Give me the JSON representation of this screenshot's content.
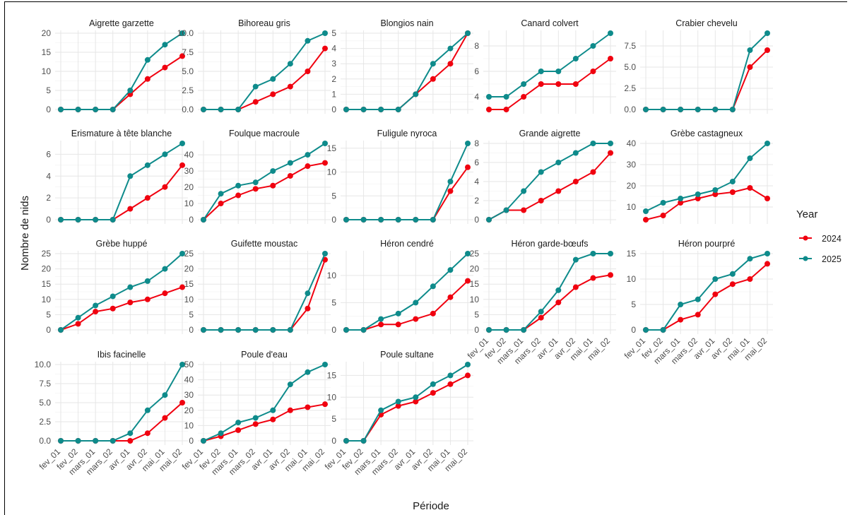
{
  "chart_data": {
    "type": "line",
    "facet": "small-multiples",
    "xlabel": "Période",
    "ylabel": "Nombre de nids",
    "x": [
      "fev_01",
      "fev_02",
      "mars_01",
      "mars_02",
      "avr_01",
      "avr_02",
      "mai_01",
      "mai_02"
    ],
    "legend": {
      "title": "Year",
      "placement": "right"
    },
    "series_colors": {
      "2024": "#f0000f",
      "2025": "#0e8b8b"
    },
    "grid": true,
    "panels": [
      {
        "title": "Aigrette garzette",
        "yticks": [
          "0",
          "5",
          "10",
          "15",
          "20"
        ],
        "tickvals": [
          0,
          5,
          10,
          15,
          20
        ],
        "ylim": [
          0,
          20
        ],
        "series": [
          {
            "name": "2024",
            "values": [
              0,
              0,
              0,
              0,
              4,
              8,
              11,
              14
            ]
          },
          {
            "name": "2025",
            "values": [
              0,
              0,
              0,
              0,
              5,
              13,
              17,
              20
            ]
          }
        ]
      },
      {
        "title": "Bihoreau gris",
        "yticks": [
          "0.0",
          "2.5",
          "5.0",
          "7.5",
          "10.0"
        ],
        "tickvals": [
          0,
          2.5,
          5,
          7.5,
          10
        ],
        "ylim": [
          0,
          10
        ],
        "series": [
          {
            "name": "2024",
            "values": [
              0,
              0,
              0,
              1,
              2,
              3,
              5,
              8
            ]
          },
          {
            "name": "2025",
            "values": [
              0,
              0,
              0,
              3,
              4,
              6,
              9,
              10
            ]
          }
        ]
      },
      {
        "title": "Blongios nain",
        "yticks": [
          "0",
          "1",
          "2",
          "3",
          "4",
          "5"
        ],
        "tickvals": [
          0,
          1,
          2,
          3,
          4,
          5
        ],
        "ylim": [
          0,
          5
        ],
        "series": [
          {
            "name": "2024",
            "values": [
              0,
              0,
              0,
              0,
              1,
              2,
              3,
              5
            ]
          },
          {
            "name": "2025",
            "values": [
              0,
              0,
              0,
              0,
              1,
              3,
              4,
              5
            ]
          }
        ]
      },
      {
        "title": "Canard colvert",
        "yticks": [
          "4",
          "6",
          "8"
        ],
        "tickvals": [
          4,
          6,
          8
        ],
        "ylim": [
          3,
          9
        ],
        "series": [
          {
            "name": "2024",
            "values": [
              3,
              3,
              4,
              5,
              5,
              5,
              6,
              7
            ]
          },
          {
            "name": "2025",
            "values": [
              4,
              4,
              5,
              6,
              6,
              7,
              8,
              9
            ]
          }
        ]
      },
      {
        "title": "Crabier chevelu",
        "yticks": [
          "0.0",
          "2.5",
          "5.0",
          "7.5"
        ],
        "tickvals": [
          0,
          2.5,
          5,
          7.5
        ],
        "ylim": [
          0,
          9
        ],
        "series": [
          {
            "name": "2024",
            "values": [
              0,
              0,
              0,
              0,
              0,
              0,
              5,
              7
            ]
          },
          {
            "name": "2025",
            "values": [
              0,
              0,
              0,
              0,
              0,
              0,
              7,
              9
            ]
          }
        ]
      },
      {
        "title": "Erismature à tête blanche",
        "yticks": [
          "0",
          "2",
          "4",
          "6"
        ],
        "tickvals": [
          0,
          2,
          4,
          6
        ],
        "ylim": [
          0,
          7
        ],
        "series": [
          {
            "name": "2024",
            "values": [
              0,
              0,
              0,
              0,
              1,
              2,
              3,
              5
            ]
          },
          {
            "name": "2025",
            "values": [
              0,
              0,
              0,
              0,
              4,
              5,
              6,
              7
            ]
          }
        ]
      },
      {
        "title": "Foulque macroule",
        "yticks": [
          "0",
          "10",
          "20",
          "30",
          "40"
        ],
        "tickvals": [
          0,
          10,
          20,
          30,
          40
        ],
        "ylim": [
          0,
          47
        ],
        "series": [
          {
            "name": "2024",
            "values": [
              0,
              10,
              15,
              19,
              21,
              27,
              33,
              35
            ]
          },
          {
            "name": "2025",
            "values": [
              0,
              16,
              21,
              23,
              30,
              35,
              40,
              47
            ]
          }
        ]
      },
      {
        "title": "Fuligule nyroca",
        "yticks": [
          "0",
          "5",
          "10",
          "15"
        ],
        "tickvals": [
          0,
          5,
          10,
          15
        ],
        "ylim": [
          0,
          16
        ],
        "series": [
          {
            "name": "2024",
            "values": [
              0,
              0,
              0,
              0,
              0,
              0,
              6,
              11
            ]
          },
          {
            "name": "2025",
            "values": [
              0,
              0,
              0,
              0,
              0,
              0,
              8,
              16
            ]
          }
        ]
      },
      {
        "title": "Grande aigrette",
        "yticks": [
          "0",
          "2",
          "4",
          "6",
          "8"
        ],
        "tickvals": [
          0,
          2,
          4,
          6,
          8
        ],
        "ylim": [
          0,
          8
        ],
        "series": [
          {
            "name": "2024",
            "values": [
              0,
              1,
              1,
              2,
              3,
              4,
              5,
              7
            ]
          },
          {
            "name": "2025",
            "values": [
              0,
              1,
              3,
              5,
              6,
              7,
              8,
              8
            ]
          }
        ]
      },
      {
        "title": "Grèbe castagneux",
        "yticks": [
          "10",
          "20",
          "30",
          "40"
        ],
        "tickvals": [
          10,
          20,
          30,
          40
        ],
        "ylim": [
          4,
          40
        ],
        "series": [
          {
            "name": "2024",
            "values": [
              4,
              6,
              12,
              14,
              16,
              17,
              19,
              14
            ]
          },
          {
            "name": "2025",
            "values": [
              8,
              12,
              14,
              16,
              18,
              22,
              33,
              40
            ]
          }
        ]
      },
      {
        "title": "Grèbe huppé",
        "yticks": [
          "0",
          "5",
          "10",
          "15",
          "20",
          "25"
        ],
        "tickvals": [
          0,
          5,
          10,
          15,
          20,
          25
        ],
        "ylim": [
          0,
          25
        ],
        "series": [
          {
            "name": "2024",
            "values": [
              0,
              2,
              6,
              7,
              9,
              10,
              12,
              14
            ]
          },
          {
            "name": "2025",
            "values": [
              0,
              4,
              8,
              11,
              14,
              16,
              20,
              25
            ]
          }
        ]
      },
      {
        "title": "Guifette moustac",
        "yticks": [
          "0",
          "5",
          "10",
          "15",
          "20",
          "25"
        ],
        "tickvals": [
          0,
          5,
          10,
          15,
          20,
          25
        ],
        "ylim": [
          0,
          25
        ],
        "series": [
          {
            "name": "2024",
            "values": [
              0,
              0,
              0,
              0,
              0,
              0,
              7,
              23
            ]
          },
          {
            "name": "2025",
            "values": [
              0,
              0,
              0,
              0,
              0,
              0,
              12,
              25
            ]
          }
        ]
      },
      {
        "title": "Héron cendré",
        "yticks": [
          "0",
          "5",
          "10"
        ],
        "tickvals": [
          0,
          5,
          10
        ],
        "ylim": [
          0,
          14
        ],
        "series": [
          {
            "name": "2024",
            "values": [
              0,
              0,
              1,
              1,
              2,
              3,
              6,
              9
            ]
          },
          {
            "name": "2025",
            "values": [
              0,
              0,
              2,
              3,
              5,
              8,
              11,
              14
            ]
          }
        ]
      },
      {
        "title": "Héron garde-bœufs",
        "yticks": [
          "0",
          "5",
          "10",
          "15",
          "20",
          "25"
        ],
        "tickvals": [
          0,
          5,
          10,
          15,
          20,
          25
        ],
        "ylim": [
          0,
          25
        ],
        "series": [
          {
            "name": "2024",
            "values": [
              0,
              0,
              0,
              4,
              9,
              14,
              17,
              18
            ]
          },
          {
            "name": "2025",
            "values": [
              0,
              0,
              0,
              6,
              13,
              23,
              25,
              25
            ]
          }
        ]
      },
      {
        "title": "Héron pourpré",
        "yticks": [
          "0",
          "5",
          "10",
          "15"
        ],
        "tickvals": [
          0,
          5,
          10,
          15
        ],
        "ylim": [
          0,
          15
        ],
        "series": [
          {
            "name": "2024",
            "values": [
              0,
              0,
              2,
              3,
              7,
              9,
              10,
              13
            ]
          },
          {
            "name": "2025",
            "values": [
              0,
              0,
              5,
              6,
              10,
              11,
              14,
              15
            ]
          }
        ]
      },
      {
        "title": "Ibis facinelle",
        "yticks": [
          "0.0",
          "2.5",
          "5.0",
          "7.5",
          "10.0"
        ],
        "tickvals": [
          0,
          2.5,
          5,
          7.5,
          10
        ],
        "ylim": [
          0,
          10
        ],
        "series": [
          {
            "name": "2024",
            "values": [
              0,
              0,
              0,
              0,
              0,
              1,
              3,
              5
            ]
          },
          {
            "name": "2025",
            "values": [
              0,
              0,
              0,
              0,
              1,
              4,
              6,
              10
            ]
          }
        ]
      },
      {
        "title": "Poule d'eau",
        "yticks": [
          "0",
          "10",
          "20",
          "30",
          "40",
          "50"
        ],
        "tickvals": [
          0,
          10,
          20,
          30,
          40,
          50
        ],
        "ylim": [
          0,
          50
        ],
        "series": [
          {
            "name": "2024",
            "values": [
              0,
              3,
              7,
              11,
              14,
              20,
              22,
              24
            ]
          },
          {
            "name": "2025",
            "values": [
              0,
              5,
              12,
              15,
              20,
              37,
              45,
              50
            ]
          }
        ]
      },
      {
        "title": "Poule sultane",
        "yticks": [
          "0",
          "5",
          "10",
          "15"
        ],
        "tickvals": [
          0,
          5,
          10,
          15
        ],
        "ylim": [
          0,
          17.5
        ],
        "series": [
          {
            "name": "2024",
            "values": [
              0,
              0,
              6,
              8,
              9,
              11,
              13,
              15
            ]
          },
          {
            "name": "2025",
            "values": [
              0,
              0,
              7,
              9,
              10,
              13,
              15,
              17.5
            ]
          }
        ]
      }
    ]
  }
}
